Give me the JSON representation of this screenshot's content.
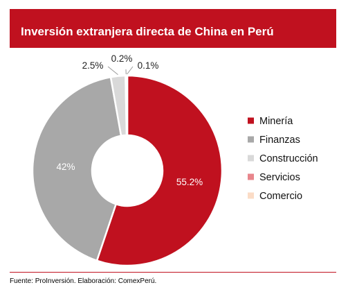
{
  "title": "Inversión extranjera directa de China en Perú",
  "source": "Fuente: ProInversión. Elaboración: ComexPerú.",
  "colors": {
    "brand": "#C0111F",
    "background": "#ffffff",
    "slice_border": "#ffffff"
  },
  "chart_data": {
    "type": "pie",
    "title": "Inversión extranjera directa de China en Perú",
    "legend_position": "right",
    "donut": true,
    "slices": [
      {
        "label": "Minería",
        "value": 55.2,
        "value_label": "55.2%",
        "color": "#C0111F"
      },
      {
        "label": "Finanzas",
        "value": 42,
        "value_label": "42%",
        "color": "#A8A8A8"
      },
      {
        "label": "Construcción",
        "value": 2.5,
        "value_label": "2.5%",
        "color": "#D9D9D9"
      },
      {
        "label": "Servicios",
        "value": 0.2,
        "value_label": "0.2%",
        "color": "#E8868C"
      },
      {
        "label": "Comercio",
        "value": 0.1,
        "value_label": "0.1%",
        "color": "#FBDCC6"
      }
    ]
  }
}
